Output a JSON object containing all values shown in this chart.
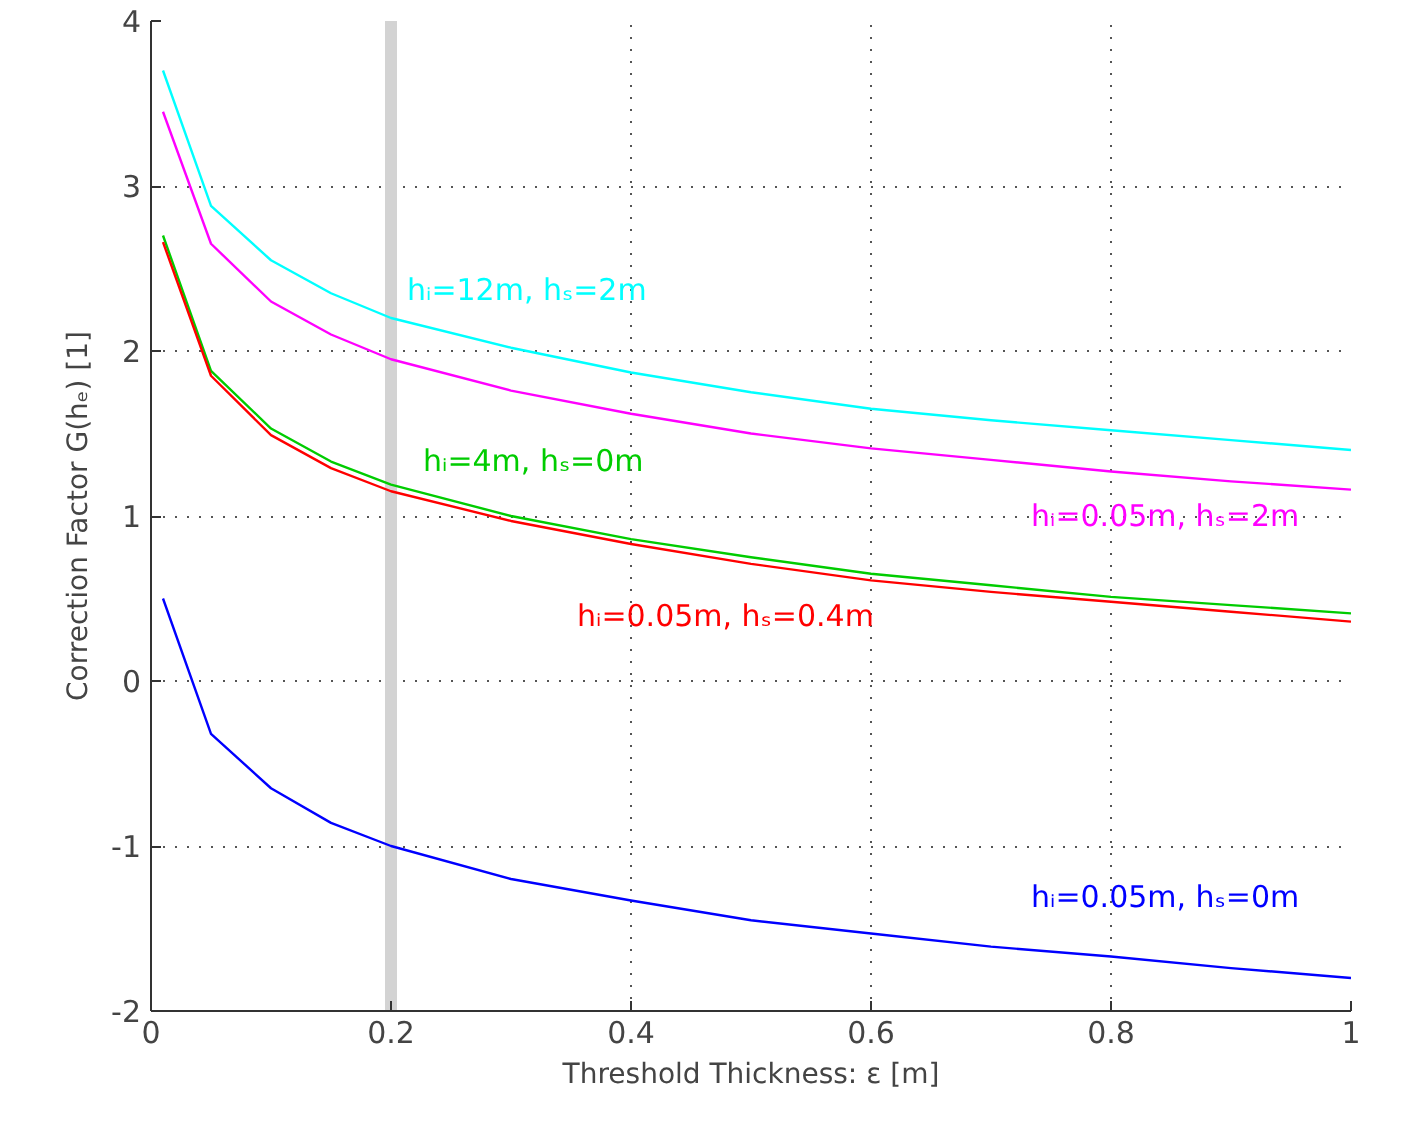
{
  "chart_data": {
    "type": "line",
    "xlabel": "Threshold Thickness: ε [m]",
    "ylabel": "Correction Factor G(hₑ) [1]",
    "x": [
      0.01,
      0.05,
      0.1,
      0.15,
      0.2,
      0.3,
      0.4,
      0.5,
      0.6,
      0.7,
      0.8,
      0.9,
      1.0
    ],
    "series": [
      {
        "name": "hᵢ=12m, hₛ=2m",
        "color": "#00ffff",
        "values": [
          3.7,
          2.88,
          2.55,
          2.35,
          2.2,
          2.02,
          1.87,
          1.75,
          1.65,
          1.58,
          1.52,
          1.46,
          1.4
        ]
      },
      {
        "name": "hᵢ=0.05m, hₛ=2m",
        "color": "#ff00ff",
        "values": [
          3.45,
          2.65,
          2.3,
          2.1,
          1.95,
          1.76,
          1.62,
          1.5,
          1.41,
          1.34,
          1.27,
          1.21,
          1.16
        ]
      },
      {
        "name": "hᵢ=4m, hₛ=0m",
        "color": "#00cc00",
        "values": [
          2.7,
          1.88,
          1.53,
          1.33,
          1.19,
          1.0,
          0.86,
          0.75,
          0.65,
          0.58,
          0.51,
          0.46,
          0.41
        ]
      },
      {
        "name": "hᵢ=0.05m, hₛ=0.4m",
        "color": "#ff0000",
        "values": [
          2.66,
          1.85,
          1.49,
          1.29,
          1.15,
          0.97,
          0.83,
          0.71,
          0.61,
          0.54,
          0.48,
          0.42,
          0.36
        ]
      },
      {
        "name": "hᵢ=0.05m, hₛ=0m",
        "color": "#0000ff",
        "values": [
          0.5,
          -0.32,
          -0.65,
          -0.86,
          -1.0,
          -1.2,
          -1.33,
          -1.45,
          -1.53,
          -1.61,
          -1.67,
          -1.74,
          -1.8
        ]
      }
    ],
    "bands": [
      {
        "axis": "x",
        "from": 0.195,
        "to": 0.205,
        "color": "#d3d3d3"
      }
    ],
    "xlim": [
      0,
      1
    ],
    "xticks": [
      0,
      0.2,
      0.4,
      0.6,
      0.8,
      1
    ],
    "ylim": [
      -2,
      4
    ],
    "yticks": [
      -2,
      -1,
      0,
      1,
      2,
      3,
      4
    ],
    "grid": true,
    "line_style": "solid",
    "marker": "none"
  }
}
